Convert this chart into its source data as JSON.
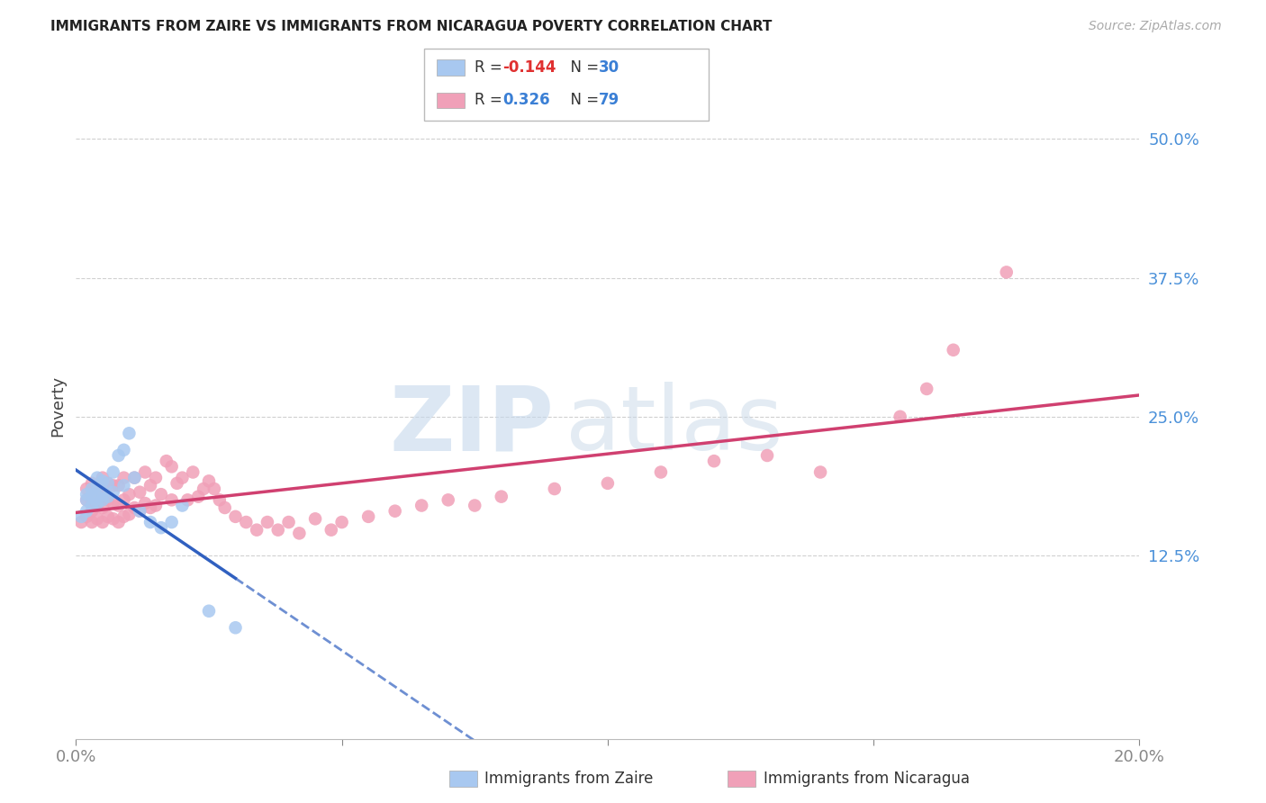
{
  "title": "IMMIGRANTS FROM ZAIRE VS IMMIGRANTS FROM NICARAGUA POVERTY CORRELATION CHART",
  "source": "Source: ZipAtlas.com",
  "ylabel": "Poverty",
  "ytick_labels": [
    "12.5%",
    "25.0%",
    "37.5%",
    "50.0%"
  ],
  "ytick_values": [
    0.125,
    0.25,
    0.375,
    0.5
  ],
  "xmin": 0.0,
  "xmax": 0.2,
  "ymin": -0.04,
  "ymax": 0.56,
  "legend_R_zaire": "-0.144",
  "legend_N_zaire": "30",
  "legend_R_nicaragua": "0.326",
  "legend_N_nicaragua": "79",
  "color_zaire": "#a8c8f0",
  "color_nicaragua": "#f0a0b8",
  "line_color_zaire": "#3060c0",
  "line_color_nicaragua": "#d04070",
  "zaire_x": [
    0.001,
    0.002,
    0.002,
    0.002,
    0.003,
    0.003,
    0.003,
    0.004,
    0.004,
    0.004,
    0.004,
    0.005,
    0.005,
    0.005,
    0.006,
    0.006,
    0.007,
    0.007,
    0.008,
    0.009,
    0.009,
    0.01,
    0.011,
    0.012,
    0.014,
    0.016,
    0.018,
    0.02,
    0.025,
    0.03
  ],
  "zaire_y": [
    0.16,
    0.165,
    0.175,
    0.18,
    0.17,
    0.18,
    0.185,
    0.172,
    0.178,
    0.188,
    0.195,
    0.175,
    0.182,
    0.192,
    0.178,
    0.19,
    0.182,
    0.2,
    0.215,
    0.188,
    0.22,
    0.235,
    0.195,
    0.165,
    0.155,
    0.15,
    0.155,
    0.17,
    0.075,
    0.06
  ],
  "nicaragua_x": [
    0.001,
    0.002,
    0.002,
    0.002,
    0.003,
    0.003,
    0.003,
    0.003,
    0.004,
    0.004,
    0.004,
    0.005,
    0.005,
    0.005,
    0.005,
    0.006,
    0.006,
    0.006,
    0.007,
    0.007,
    0.007,
    0.008,
    0.008,
    0.008,
    0.009,
    0.009,
    0.009,
    0.01,
    0.01,
    0.011,
    0.011,
    0.012,
    0.012,
    0.013,
    0.013,
    0.014,
    0.014,
    0.015,
    0.015,
    0.016,
    0.017,
    0.018,
    0.018,
    0.019,
    0.02,
    0.021,
    0.022,
    0.023,
    0.024,
    0.025,
    0.026,
    0.027,
    0.028,
    0.03,
    0.032,
    0.034,
    0.036,
    0.038,
    0.04,
    0.042,
    0.045,
    0.048,
    0.05,
    0.055,
    0.06,
    0.065,
    0.07,
    0.075,
    0.08,
    0.09,
    0.1,
    0.11,
    0.12,
    0.13,
    0.14,
    0.155,
    0.16,
    0.165,
    0.175
  ],
  "nicaragua_y": [
    0.155,
    0.16,
    0.175,
    0.185,
    0.155,
    0.165,
    0.175,
    0.19,
    0.158,
    0.17,
    0.185,
    0.155,
    0.168,
    0.178,
    0.195,
    0.16,
    0.175,
    0.19,
    0.158,
    0.172,
    0.188,
    0.155,
    0.17,
    0.188,
    0.16,
    0.175,
    0.195,
    0.162,
    0.18,
    0.168,
    0.195,
    0.165,
    0.182,
    0.172,
    0.2,
    0.168,
    0.188,
    0.17,
    0.195,
    0.18,
    0.21,
    0.175,
    0.205,
    0.19,
    0.195,
    0.175,
    0.2,
    0.178,
    0.185,
    0.192,
    0.185,
    0.175,
    0.168,
    0.16,
    0.155,
    0.148,
    0.155,
    0.148,
    0.155,
    0.145,
    0.158,
    0.148,
    0.155,
    0.16,
    0.165,
    0.17,
    0.175,
    0.17,
    0.178,
    0.185,
    0.19,
    0.2,
    0.21,
    0.215,
    0.2,
    0.25,
    0.275,
    0.31,
    0.38
  ],
  "watermark_zip": "ZIP",
  "watermark_atlas": "atlas",
  "background_color": "#ffffff",
  "grid_color": "#d0d0d0"
}
